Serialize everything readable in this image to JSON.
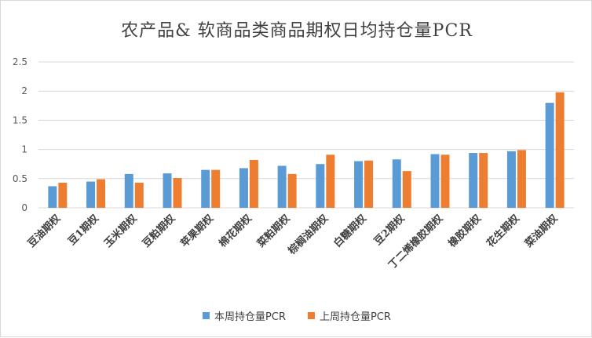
{
  "chart_data": {
    "type": "bar",
    "title": "农产品& 软商品类商品期权日均持仓量PCR",
    "categories": [
      "豆油期权",
      "豆1期权",
      "玉米期权",
      "豆粕期权",
      "苹果期权",
      "棉花期权",
      "菜粕期权",
      "棕榈油期权",
      "白糖期权",
      "豆2期权",
      "丁二烯橡胶期权",
      "橡胶期权",
      "花生期权",
      "菜油期权"
    ],
    "series": [
      {
        "name": "本周持仓量PCR",
        "color": "#5b9bd5",
        "values": [
          0.37,
          0.45,
          0.58,
          0.59,
          0.65,
          0.68,
          0.72,
          0.75,
          0.8,
          0.83,
          0.92,
          0.94,
          0.97,
          1.8
        ]
      },
      {
        "name": "上周持仓量PCR",
        "color": "#ed7d31",
        "values": [
          0.43,
          0.49,
          0.43,
          0.51,
          0.65,
          0.82,
          0.58,
          0.91,
          0.81,
          0.63,
          0.91,
          0.94,
          0.99,
          1.98
        ]
      }
    ],
    "yticks": [
      "0",
      "0.5",
      "1",
      "1.5",
      "2",
      "2.5"
    ],
    "ylim": [
      0,
      2.5
    ],
    "grid": true,
    "legend": "bottom"
  }
}
